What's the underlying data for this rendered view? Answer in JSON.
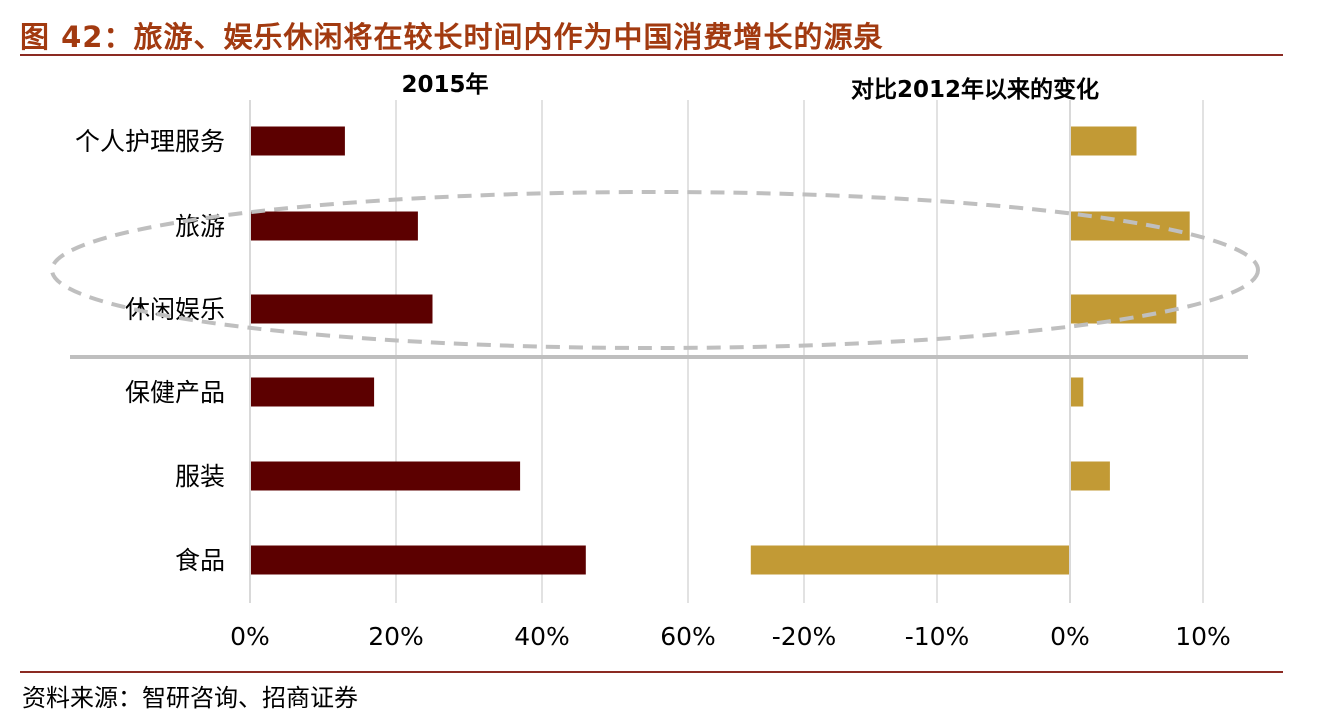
{
  "title": "图 42：旅游、娱乐休闲将在较长时间内作为中国消费增长的源泉",
  "source": "资料来源：智研咨询、招商证券",
  "colors": {
    "title": "#a23a10",
    "rule": "#8b2a22",
    "bar_left": "#5c0000",
    "bar_right": "#c29a35",
    "grid": "#d9d9d9",
    "separator": "#bfbfbf",
    "ellipse": "#bfbfbf"
  },
  "chart_data": [
    {
      "type": "bar",
      "orientation": "horizontal",
      "title": "2015年",
      "categories": [
        "个人护理服务",
        "旅游",
        "休闲娱乐",
        "保健产品",
        "服装",
        "食品"
      ],
      "values": [
        0.13,
        0.23,
        0.25,
        0.17,
        0.37,
        0.46
      ],
      "xlim": [
        0,
        0.6
      ],
      "ticks": [
        0,
        0.2,
        0.4,
        0.6
      ],
      "tick_labels": [
        "0%",
        "20%",
        "40%",
        "60%"
      ],
      "grid": true
    },
    {
      "type": "bar",
      "orientation": "horizontal",
      "title": "对比2012年以来的变化",
      "categories": [
        "个人护理服务",
        "旅游",
        "休闲娱乐",
        "保健产品",
        "服装",
        "食品"
      ],
      "values": [
        0.05,
        0.09,
        0.08,
        0.01,
        0.03,
        -0.24
      ],
      "xlim": [
        -0.25,
        0.12
      ],
      "ticks": [
        -0.2,
        -0.1,
        0,
        0.1
      ],
      "tick_labels": [
        "-20%",
        "-10%",
        "0%",
        "10%"
      ],
      "grid": true
    }
  ]
}
